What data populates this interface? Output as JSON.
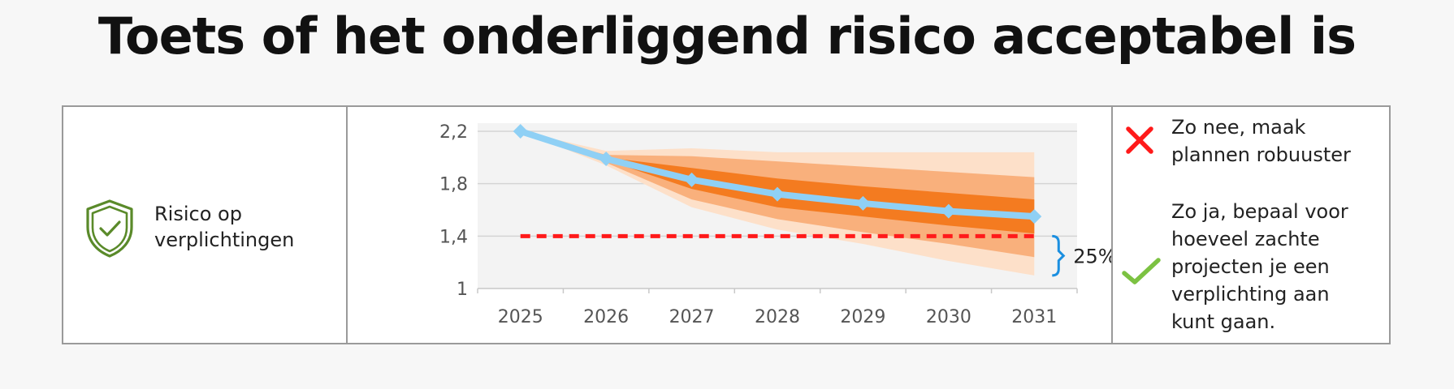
{
  "title": "Toets of het onderliggend risico acceptabel is",
  "left": {
    "label_line1": "Risico op",
    "label_line2": "verplichtingen",
    "icon": "shield-check-icon"
  },
  "right": {
    "no_lines": [
      "Zo nee, maak",
      "plannen robuuster"
    ],
    "yes_lines": [
      "Zo ja, bepaal voor",
      "hoeveel zachte",
      "projecten je een",
      "verplichting aan",
      "kunt gaan."
    ],
    "no_icon": "cross-icon",
    "yes_icon": "check-icon"
  },
  "chart_data": {
    "type": "line",
    "x": [
      "2025",
      "2026",
      "2027",
      "2028",
      "2029",
      "2030",
      "2031"
    ],
    "ylim": [
      1,
      2.2
    ],
    "yticks": [
      "1",
      "1,4",
      "1,8",
      "2,2"
    ],
    "ytick_values": [
      1,
      1.4,
      1.8,
      2.2
    ],
    "grid": true,
    "series": [
      {
        "values": [
          2.2,
          1.99,
          1.83,
          1.72,
          1.65,
          1.59,
          1.55
        ]
      }
    ],
    "bands": {
      "outer_upper": [
        2.2,
        2.05,
        2.07,
        2.04,
        2.04,
        2.04,
        2.04
      ],
      "mid_upper": [
        2.2,
        2.02,
        2.01,
        1.97,
        1.93,
        1.89,
        1.85
      ],
      "inner_upper": [
        2.2,
        2.0,
        1.92,
        1.84,
        1.78,
        1.73,
        1.68
      ],
      "inner_lower": [
        2.2,
        1.98,
        1.76,
        1.62,
        1.55,
        1.48,
        1.42
      ],
      "mid_lower": [
        2.2,
        1.96,
        1.68,
        1.53,
        1.43,
        1.34,
        1.24
      ],
      "outer_lower": [
        2.2,
        1.94,
        1.62,
        1.45,
        1.34,
        1.21,
        1.1
      ]
    },
    "threshold": 1.4,
    "annotation": "25%",
    "colors": {
      "line": "#8fd0f5",
      "inner": "#f47b20",
      "mid": "#f9b07c",
      "outer": "#fde0c9",
      "threshold": "#ff1a1a",
      "bracket": "#1b8fe0"
    }
  }
}
